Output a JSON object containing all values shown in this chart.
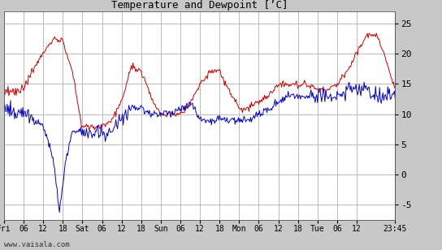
{
  "title": "Temperature and Dewpoint [’C]",
  "yticks": [
    -5,
    0,
    5,
    10,
    15,
    20,
    25
  ],
  "ylim": [
    -7.5,
    27
  ],
  "xtick_labels": [
    "Fri",
    "06",
    "12",
    "18",
    "Sat",
    "06",
    "12",
    "18",
    "Sun",
    "06",
    "12",
    "18",
    "Mon",
    "06",
    "12",
    "18",
    "Tue",
    "06",
    "12",
    "23:45"
  ],
  "watermark": "www.vaisala.com",
  "bg_color": "#c8c8c8",
  "plot_bg_color": "#ffffff",
  "grid_color": "#b0b0b0",
  "temp_color": "#cc0000",
  "dewpoint_color": "#0000cc",
  "line_width": 0.7,
  "n": 480
}
